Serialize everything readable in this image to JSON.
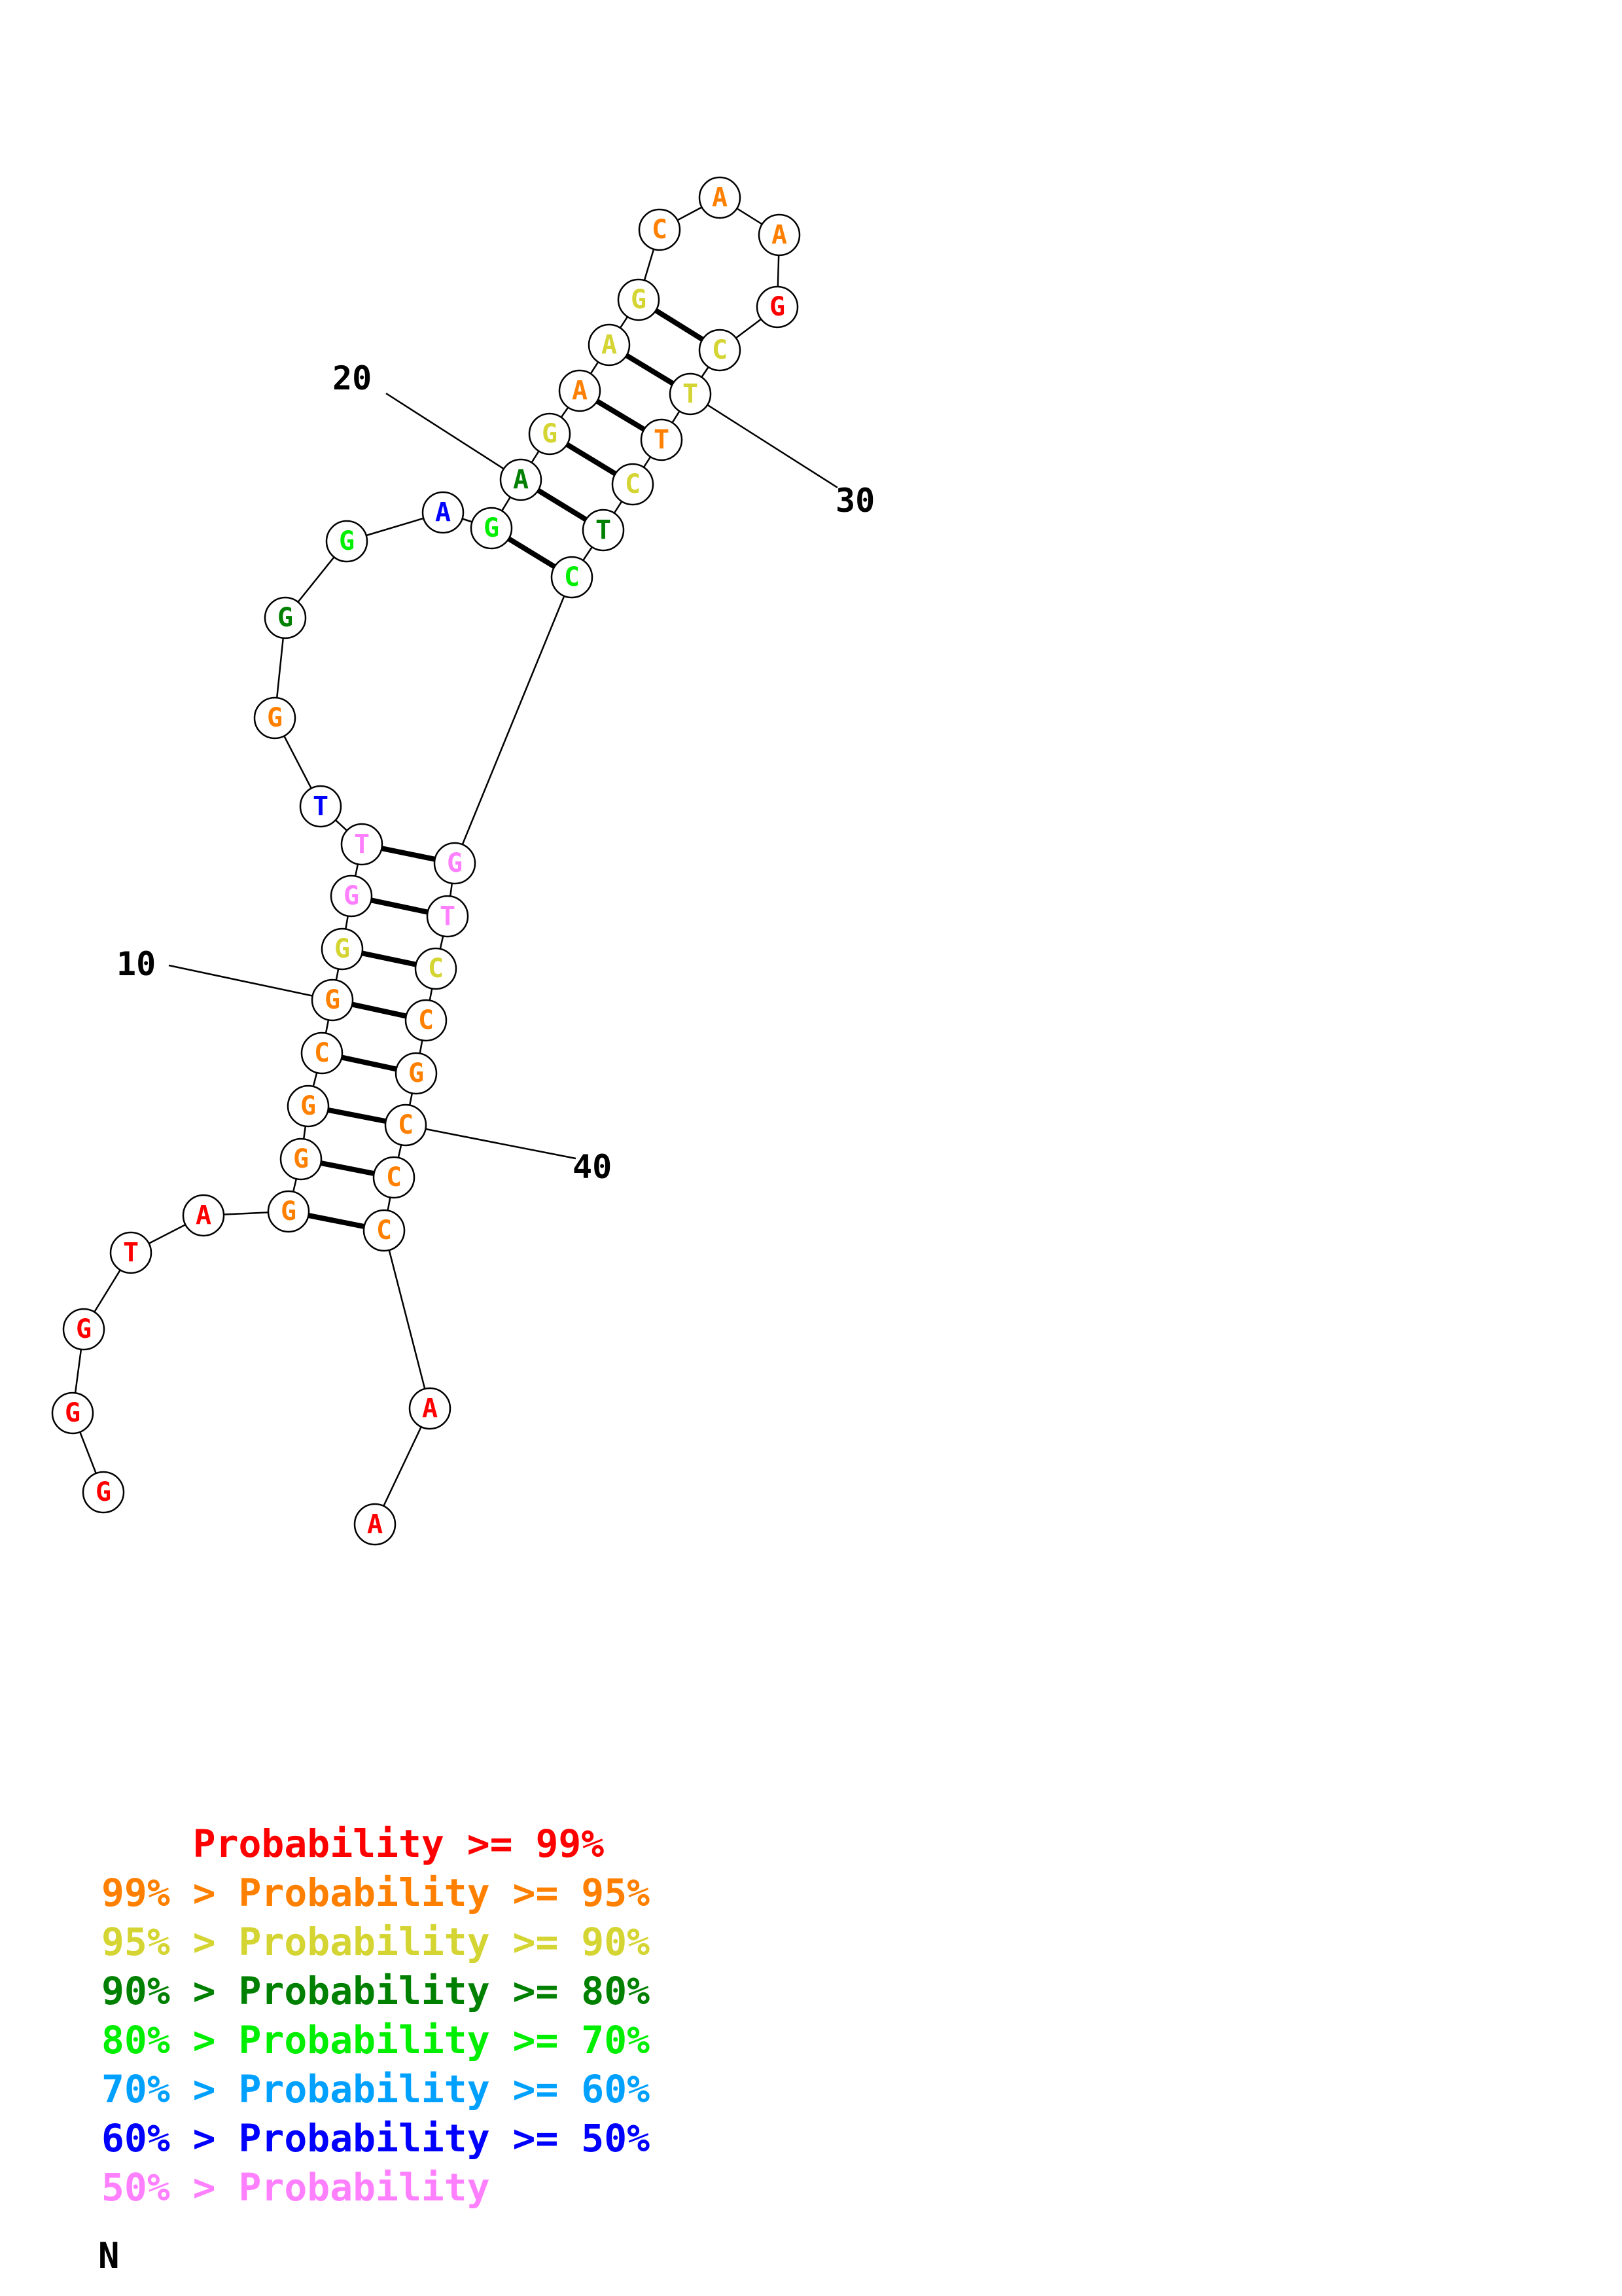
{
  "structure": {
    "nucleotides": [
      {
        "n": 1,
        "base": "G",
        "color": "#ff0000"
      },
      {
        "n": 2,
        "base": "G",
        "color": "#ff0000"
      },
      {
        "n": 3,
        "base": "G",
        "color": "#ff0000"
      },
      {
        "n": 4,
        "base": "T",
        "color": "#ff0000"
      },
      {
        "n": 5,
        "base": "A",
        "color": "#ff0000"
      },
      {
        "n": 6,
        "base": "G",
        "color": "#ff8000"
      },
      {
        "n": 7,
        "base": "G",
        "color": "#ff8000"
      },
      {
        "n": 8,
        "base": "G",
        "color": "#ff8000"
      },
      {
        "n": 9,
        "base": "C",
        "color": "#ff8000"
      },
      {
        "n": 10,
        "base": "G",
        "color": "#ff8000"
      },
      {
        "n": 11,
        "base": "G",
        "color": "#d4d432"
      },
      {
        "n": 12,
        "base": "G",
        "color": "#ff80ff"
      },
      {
        "n": 13,
        "base": "T",
        "color": "#ff80ff"
      },
      {
        "n": 14,
        "base": "T",
        "color": "#0000ff"
      },
      {
        "n": 15,
        "base": "G",
        "color": "#ff8000"
      },
      {
        "n": 16,
        "base": "G",
        "color": "#008000"
      },
      {
        "n": 17,
        "base": "G",
        "color": "#00ee00"
      },
      {
        "n": 18,
        "base": "A",
        "color": "#0000ff"
      },
      {
        "n": 19,
        "base": "G",
        "color": "#00ee00"
      },
      {
        "n": 20,
        "base": "A",
        "color": "#008000"
      },
      {
        "n": 21,
        "base": "G",
        "color": "#d4d432"
      },
      {
        "n": 22,
        "base": "A",
        "color": "#ff8000"
      },
      {
        "n": 23,
        "base": "A",
        "color": "#d4d432"
      },
      {
        "n": 24,
        "base": "G",
        "color": "#d4d432"
      },
      {
        "n": 25,
        "base": "C",
        "color": "#ff8000"
      },
      {
        "n": 26,
        "base": "A",
        "color": "#ff8000"
      },
      {
        "n": 27,
        "base": "A",
        "color": "#ff8000"
      },
      {
        "n": 28,
        "base": "G",
        "color": "#ff0000"
      },
      {
        "n": 29,
        "base": "C",
        "color": "#d4d432"
      },
      {
        "n": 30,
        "base": "T",
        "color": "#d4d432"
      },
      {
        "n": 31,
        "base": "T",
        "color": "#ff8000"
      },
      {
        "n": 32,
        "base": "C",
        "color": "#d4d432"
      },
      {
        "n": 33,
        "base": "T",
        "color": "#008000"
      },
      {
        "n": 34,
        "base": "C",
        "color": "#00ee00"
      },
      {
        "n": 35,
        "base": "G",
        "color": "#ff80ff"
      },
      {
        "n": 36,
        "base": "T",
        "color": "#ff80ff"
      },
      {
        "n": 37,
        "base": "C",
        "color": "#d4d432"
      },
      {
        "n": 38,
        "base": "C",
        "color": "#ff8000"
      },
      {
        "n": 39,
        "base": "G",
        "color": "#ff8000"
      },
      {
        "n": 40,
        "base": "C",
        "color": "#ff8000"
      },
      {
        "n": 41,
        "base": "C",
        "color": "#ff8000"
      },
      {
        "n": 42,
        "base": "C",
        "color": "#ff8000"
      },
      {
        "n": 43,
        "base": "A",
        "color": "#ff0000"
      },
      {
        "n": 44,
        "base": "A",
        "color": "#ff0000"
      }
    ],
    "pairs": [
      [
        6,
        42
      ],
      [
        7,
        41
      ],
      [
        8,
        40
      ],
      [
        9,
        39
      ],
      [
        10,
        38
      ],
      [
        11,
        37
      ],
      [
        12,
        36
      ],
      [
        13,
        35
      ],
      [
        19,
        34
      ],
      [
        20,
        33
      ],
      [
        21,
        32
      ],
      [
        22,
        31
      ],
      [
        23,
        30
      ],
      [
        24,
        29
      ]
    ],
    "position_labels": [
      {
        "text": "10",
        "n": 10
      },
      {
        "text": "20",
        "n": 20
      },
      {
        "text": "30",
        "n": 30
      },
      {
        "text": "40",
        "n": 40
      }
    ]
  },
  "legend": [
    {
      "prefix": "    ",
      "text": "    Probability >= 99%",
      "color": "#ff0000"
    },
    {
      "text": "99% > Probability >= 95%",
      "color": "#ff8000"
    },
    {
      "text": "95% > Probability >= 90%",
      "color": "#d4d432"
    },
    {
      "text": "90% > Probability >= 80%",
      "color": "#008000"
    },
    {
      "text": "80% > Probability >= 70%",
      "color": "#00ee00"
    },
    {
      "text": "70% > Probability >= 60%",
      "color": "#00a0ff"
    },
    {
      "text": "60% > Probability >= 50%",
      "color": "#0000ff"
    },
    {
      "text": "50% > Probability",
      "color": "#ff80ff"
    }
  ],
  "footer_label": "N"
}
